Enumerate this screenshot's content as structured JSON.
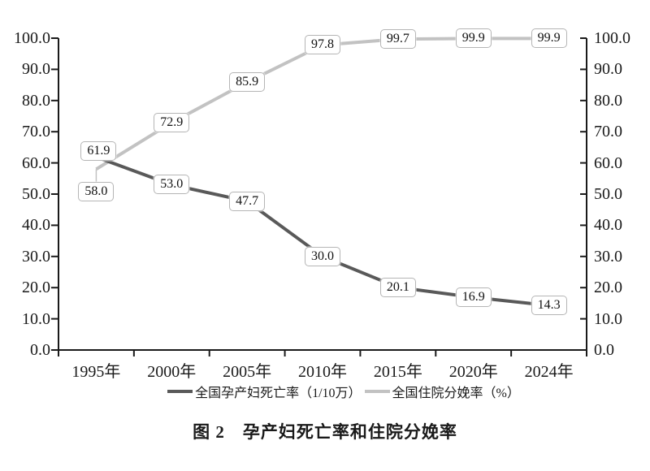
{
  "chart_data": {
    "type": "line",
    "title": "图 2　孕产妇死亡率和住院分娩率",
    "categories": [
      "1995年",
      "2000年",
      "2005年",
      "2010年",
      "2015年",
      "2020年",
      "2024年"
    ],
    "series": [
      {
        "key": "maternal-mortality-rate",
        "name": "全国孕产妇死亡率（1/10万）",
        "values": [
          61.9,
          53.0,
          47.7,
          30.0,
          20.1,
          16.9,
          14.3
        ],
        "color": "#595959"
      },
      {
        "key": "hospital-delivery-rate",
        "name": "全国住院分娩率（%）",
        "values": [
          58.0,
          72.9,
          85.9,
          97.8,
          99.7,
          99.9,
          99.9
        ],
        "color": "#c2c2c2"
      }
    ],
    "y_axis": {
      "min": 0,
      "max": 100,
      "step": 10,
      "tick_labels": [
        "0.0",
        "10.0",
        "20.0",
        "30.0",
        "40.0",
        "50.0",
        "60.0",
        "70.0",
        "80.0",
        "90.0",
        "100.0"
      ]
    },
    "secondary_y_axis": {
      "min": 0,
      "max": 100,
      "step": 10,
      "tick_labels": [
        "0.0",
        "10.0",
        "20.0",
        "30.0",
        "40.0",
        "50.0",
        "60.0",
        "70.0",
        "80.0",
        "90.0",
        "100.0"
      ]
    },
    "data_labels": true,
    "label_format": "one-decimal",
    "grid": false,
    "legend_position": "bottom",
    "axis_color": "#1a1a1a",
    "label_box": {
      "fill": "#ffffff",
      "border": "#b5b5b5"
    }
  },
  "figure": {
    "caption": "图 2　孕产妇死亡率和住院分娩率"
  }
}
